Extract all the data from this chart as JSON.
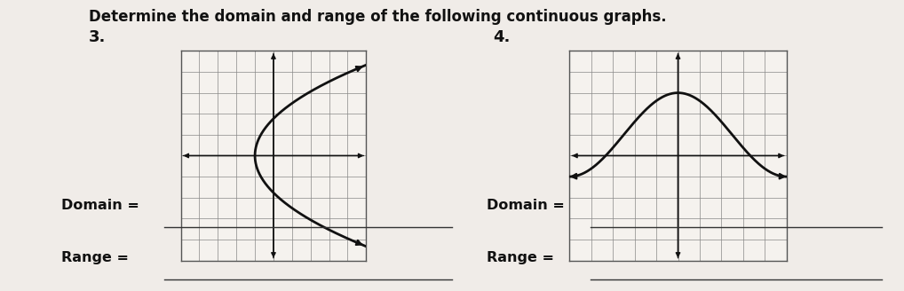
{
  "title": "Determine the domain and range of the following continuous graphs.",
  "title_fontsize": 12,
  "title_fontweight": "bold",
  "background_color": "#f0ece8",
  "graph_bg_color": "#f5f2ee",
  "grid_color": "#888888",
  "axis_color": "#111111",
  "curve_color": "#111111",
  "label3": "3.",
  "label4": "4.",
  "domain_label": "Domain = ",
  "range_label": "Range = ",
  "graph3": {
    "xlim": [
      -5,
      5
    ],
    "ylim": [
      -5,
      5
    ],
    "parabola_a": 0.32,
    "parabola_vx": -1.0
  },
  "graph4": {
    "xlim": [
      -5,
      5
    ],
    "ylim": [
      -5,
      5
    ],
    "sine_amp": 2.0,
    "sine_freq": 0.65,
    "sine_shift": 1.0
  }
}
